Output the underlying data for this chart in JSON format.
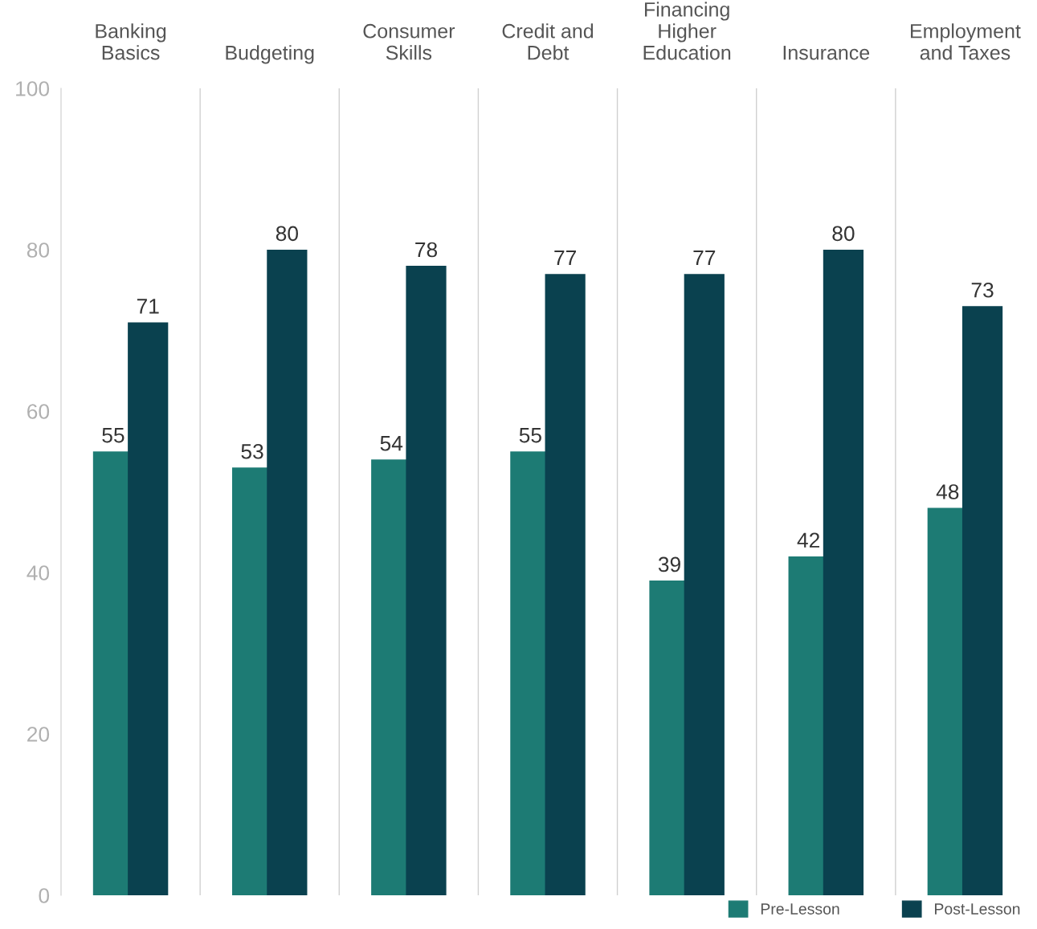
{
  "chart_data": {
    "type": "bar",
    "categories": [
      "Banking\nBasics",
      "Budgeting",
      "Consumer\nSkills",
      "Credit and\nDebt",
      "Financing\nHigher\nEducation",
      "Insurance",
      "Employment\nand Taxes"
    ],
    "series": [
      {
        "name": "Pre-Lesson",
        "color": "#1d7b74",
        "values": [
          55,
          53,
          54,
          55,
          39,
          42,
          48
        ]
      },
      {
        "name": "Post-Lesson",
        "color": "#0a414f",
        "values": [
          71,
          80,
          78,
          77,
          77,
          80,
          73
        ]
      }
    ],
    "ylim": [
      0,
      100
    ],
    "yticks": [
      0,
      20,
      40,
      60,
      80,
      100
    ],
    "data_labels": true,
    "grid": "x",
    "legend": "bottom right"
  }
}
